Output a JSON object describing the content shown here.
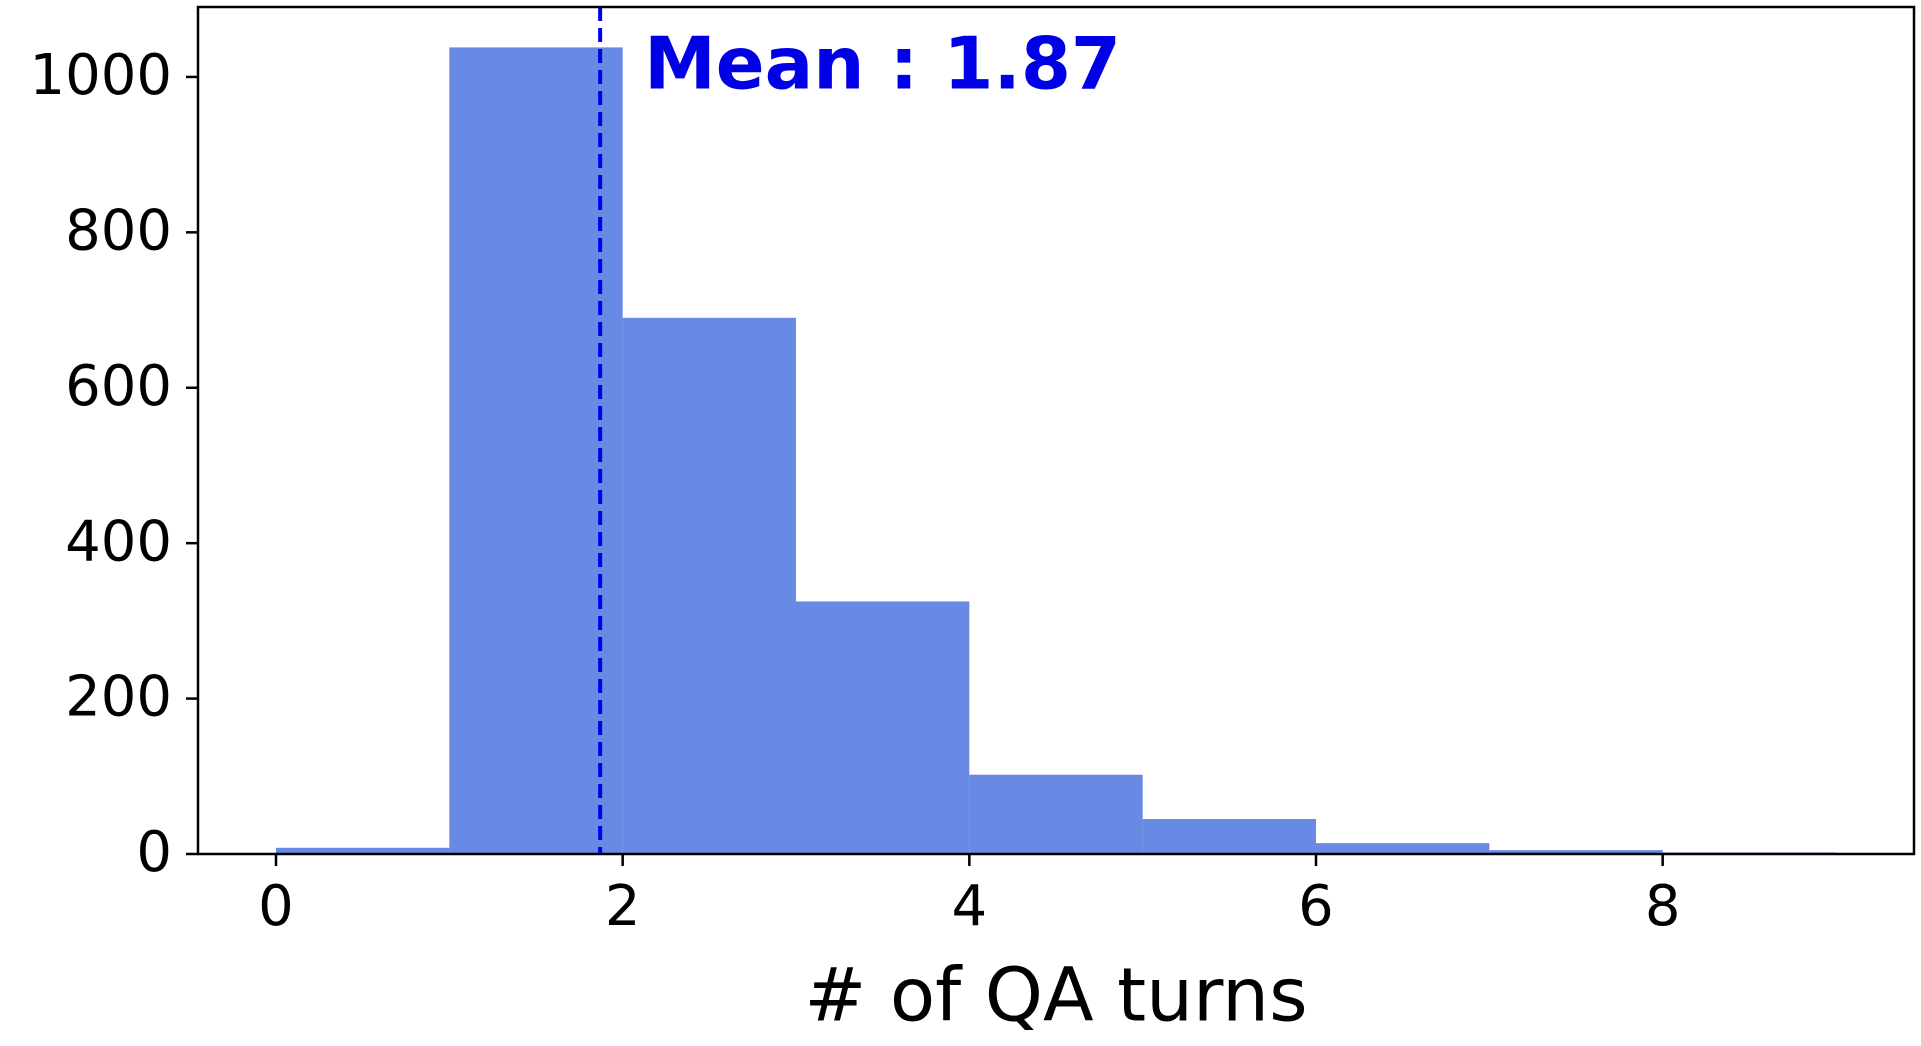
{
  "chart_data": {
    "type": "histogram",
    "x_label": "# of QA turns",
    "bins": [
      0,
      1,
      2,
      3,
      4,
      5,
      6,
      7,
      8,
      9
    ],
    "values": [
      8,
      1038,
      690,
      325,
      102,
      45,
      14,
      5,
      2
    ],
    "color": "#6889e4",
    "xlim": [
      -0.45,
      9.45
    ],
    "ylim": [
      0,
      1090
    ],
    "xticks": [
      0,
      2,
      4,
      6,
      8
    ],
    "yticks": [
      0,
      200,
      400,
      600,
      800,
      1000
    ],
    "mean": {
      "value": 1.87,
      "label": "Mean : 1.87",
      "color": "#0000e6"
    }
  }
}
